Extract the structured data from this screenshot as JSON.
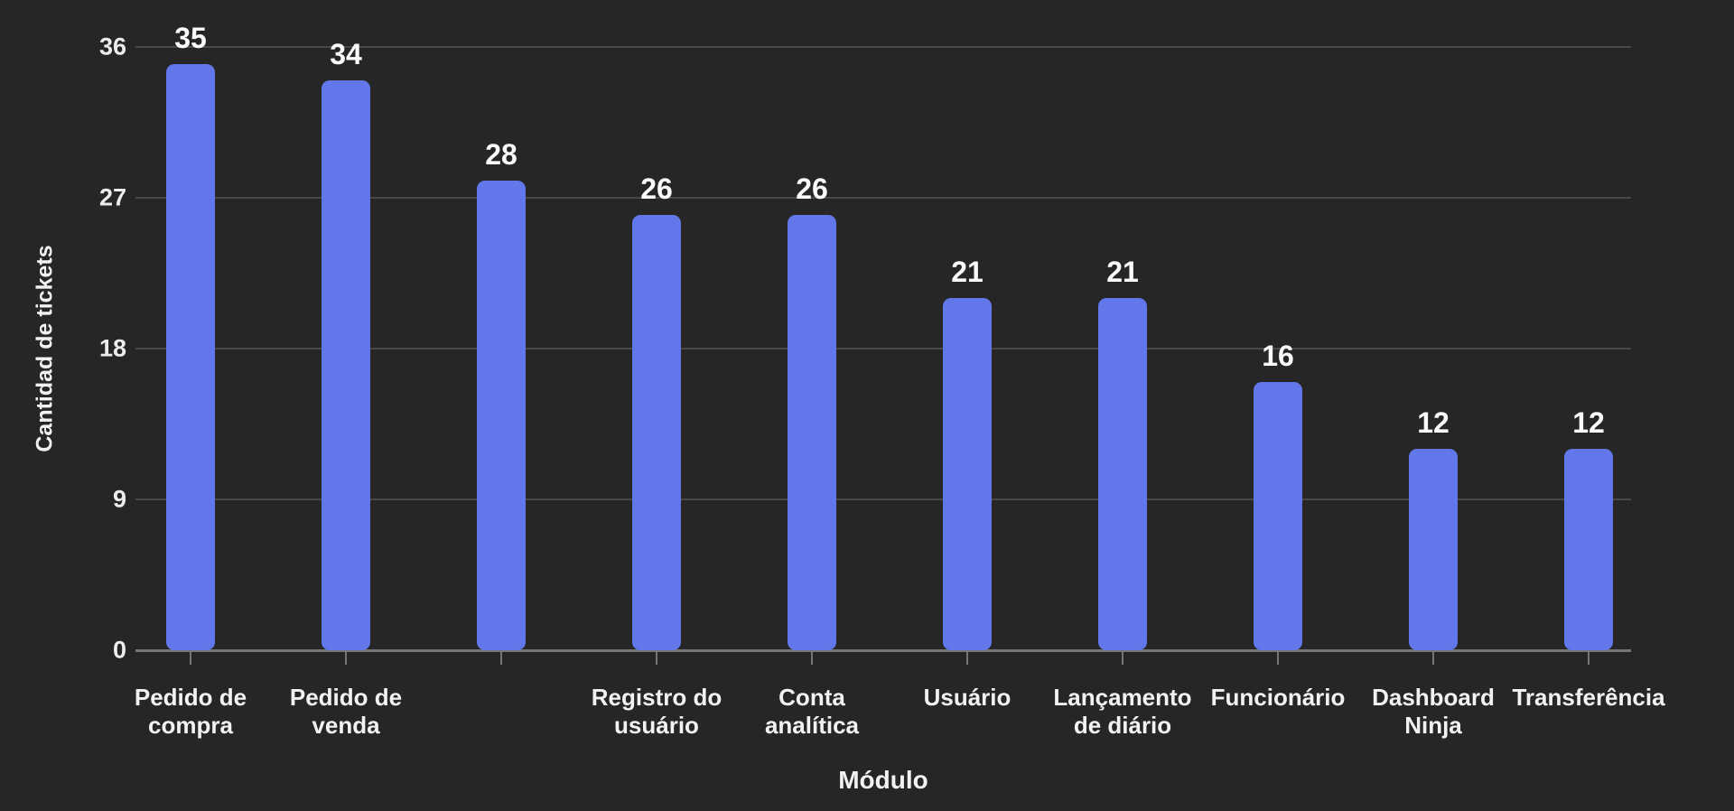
{
  "chart_data": {
    "type": "bar",
    "title": "",
    "xlabel": "Módulo",
    "ylabel": "Cantidad de tickets",
    "categories": [
      "Pedido de\ncompra",
      "Pedido de\nvenda",
      "",
      "Registro do\nusuário",
      "Conta\nanalítica",
      "Usuário",
      "Lançamento\nde diário",
      "Funcionário",
      "Dashboard\nNinja",
      "Transferência"
    ],
    "values": [
      35,
      34,
      28,
      26,
      26,
      21,
      21,
      16,
      12,
      12
    ],
    "yticks": [
      0,
      9,
      18,
      27,
      36
    ],
    "ylim": [
      0,
      36
    ],
    "grid": true,
    "legend": false,
    "colors": {
      "bar": "#6277E9",
      "background": "#262626",
      "gridline": "#494949",
      "axis": "#767676",
      "tick_label": "#ededed",
      "value_label": "#fafafa",
      "category_label": "#f2f2f2"
    }
  }
}
